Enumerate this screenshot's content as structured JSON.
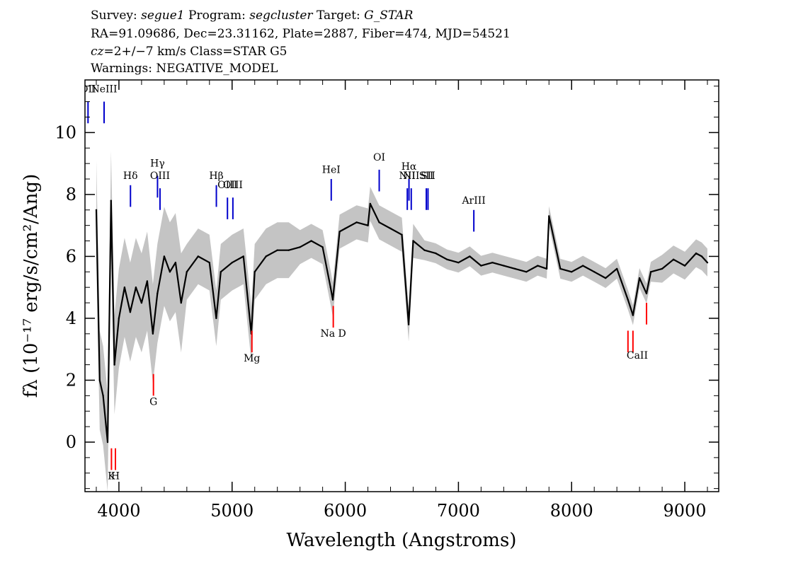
{
  "header": {
    "line1": {
      "survey_label": "Survey: ",
      "survey": "segue1",
      "program_label": " Program: ",
      "program": "segcluster",
      "target_label": " Target: ",
      "target": "G_STAR"
    },
    "line2": "RA=91.09686, Dec=23.31162, Plate=2887, Fiber=474, MJD=54521",
    "line3": {
      "cz_label": "cz",
      "cz_rest": "=2+/−7 km/s Class=STAR G5"
    },
    "line4": "Warnings: NEGATIVE_MODEL"
  },
  "chart_data": {
    "type": "line",
    "xlabel": "Wavelength (Angstroms)",
    "ylabel": "fλ (10⁻¹⁷ erg/s/cm²/Ang)",
    "xlim": [
      3700,
      9300
    ],
    "ylim": [
      -1.6,
      11.7
    ],
    "x_ticks": [
      4000,
      5000,
      6000,
      7000,
      8000,
      9000
    ],
    "y_ticks": [
      0,
      2,
      4,
      6,
      8,
      10
    ],
    "grid": false,
    "colors": {
      "flux": "#000000",
      "error_band": "#c4c4c4",
      "emission_lines": "#0000cc",
      "absorption_lines": "#ff0000"
    },
    "series": [
      {
        "x": [
          3800,
          3830,
          3860,
          3900,
          3930,
          3960,
          4000,
          4050,
          4100,
          4150,
          4200,
          4250,
          4300,
          4340,
          4400,
          4450,
          4500,
          4550,
          4600,
          4700,
          4800,
          4860,
          4900,
          5000,
          5100,
          5170,
          5200,
          5300,
          5400,
          5500,
          5600,
          5700,
          5800,
          5870,
          5890,
          5950,
          6000,
          6100,
          6200,
          6220,
          6300,
          6400,
          6500,
          6560,
          6600,
          6700,
          6800,
          6900,
          7000,
          7100,
          7200,
          7300,
          7400,
          7500,
          7600,
          7700,
          7780,
          7800,
          7900,
          8000,
          8100,
          8200,
          8300,
          8400,
          8498,
          8542,
          8600,
          8662,
          8700,
          8800,
          8900,
          9000,
          9100,
          9150,
          9200
        ],
        "values": [
          7.5,
          2.0,
          1.5,
          0.0,
          7.8,
          2.5,
          4.0,
          5.0,
          4.2,
          5.0,
          4.5,
          5.2,
          3.5,
          4.8,
          6.0,
          5.5,
          5.8,
          4.5,
          5.5,
          6.0,
          5.8,
          4.0,
          5.5,
          5.8,
          6.0,
          3.5,
          5.5,
          6.0,
          6.2,
          6.2,
          6.3,
          6.5,
          6.3,
          5.0,
          4.6,
          6.8,
          6.9,
          7.1,
          7.0,
          7.7,
          7.1,
          6.9,
          6.7,
          3.8,
          6.5,
          6.2,
          6.1,
          5.9,
          5.8,
          6.0,
          5.7,
          5.8,
          5.7,
          5.6,
          5.5,
          5.7,
          5.6,
          7.3,
          5.6,
          5.5,
          5.7,
          5.5,
          5.3,
          5.6,
          4.6,
          4.1,
          5.3,
          4.8,
          5.5,
          5.6,
          5.9,
          5.7,
          6.1,
          6.0,
          5.8
        ]
      }
    ],
    "emission_lines": [
      {
        "name": "OII",
        "x": 3727,
        "y0": 10.3,
        "y1": 11.0,
        "label_y": 11.3
      },
      {
        "name": "NeIII",
        "x": 3869,
        "y0": 10.3,
        "y1": 11.0,
        "label_y": 11.3
      },
      {
        "name": "Hδ",
        "x": 4102,
        "y0": 7.6,
        "y1": 8.3,
        "label_y": 8.5
      },
      {
        "name": "Hγ",
        "x": 4341,
        "y0": 7.9,
        "y1": 8.6,
        "label_y": 8.9
      },
      {
        "name": "OIII",
        "x": 4363,
        "y0": 7.5,
        "y1": 8.2,
        "label_y": 8.5
      },
      {
        "name": "Hβ",
        "x": 4861,
        "y0": 7.6,
        "y1": 8.3,
        "label_y": 8.5
      },
      {
        "name": "OIII",
        "x": 4959,
        "y0": 7.2,
        "y1": 7.9,
        "label_y": 8.2
      },
      {
        "name": "OIII",
        "x": 5007,
        "y0": 7.2,
        "y1": 7.9,
        "label_y": 8.2
      },
      {
        "name": "HeI",
        "x": 5876,
        "y0": 7.8,
        "y1": 8.5,
        "label_y": 8.7
      },
      {
        "name": "OI",
        "x": 6300,
        "y0": 8.1,
        "y1": 8.8,
        "label_y": 9.1
      },
      {
        "name": "NII",
        "x": 6548,
        "y0": 7.5,
        "y1": 8.2,
        "label_y": 8.5
      },
      {
        "name": "Hα",
        "x": 6563,
        "y0": 7.8,
        "y1": 8.5,
        "label_y": 8.8
      },
      {
        "name": "NII",
        "x": 6583,
        "y0": 7.5,
        "y1": 8.2,
        "label_y": 8.5
      },
      {
        "name": "SII",
        "x": 6716,
        "y0": 7.5,
        "y1": 8.2,
        "label_y": 8.5
      },
      {
        "name": "SII",
        "x": 6731,
        "y0": 7.5,
        "y1": 8.2,
        "label_y": 8.5
      },
      {
        "name": "ArIII",
        "x": 7136,
        "y0": 6.8,
        "y1": 7.5,
        "label_y": 7.7
      }
    ],
    "absorption_lines": [
      {
        "name": "K",
        "x": 3934,
        "y0": -0.9,
        "y1": -0.2
      },
      {
        "name": "H",
        "x": 3969,
        "y0": -0.9,
        "y1": -0.2
      },
      {
        "name": "G",
        "x": 4305,
        "y0": 1.5,
        "y1": 2.2
      },
      {
        "name": "Mg",
        "x": 5175,
        "y0": 2.9,
        "y1": 3.6
      },
      {
        "name": "Na",
        "x": 5894,
        "y0": 3.7,
        "y1": 4.4
      },
      {
        "name": "CaII",
        "x": 8498,
        "y0": 2.9,
        "y1": 3.6
      },
      {
        "name": "CaII",
        "x": 8542,
        "y0": 2.9,
        "y1": 3.6
      },
      {
        "name": "CaII",
        "x": 8662,
        "y0": 3.8,
        "y1": 4.5
      }
    ],
    "absorption_labels": [
      {
        "text": "K",
        "x": 3934,
        "y": -1.2
      },
      {
        "text": "H",
        "x": 3969,
        "y": -1.2
      },
      {
        "text": "G",
        "x": 4305,
        "y": 1.2
      },
      {
        "text": "Mg",
        "x": 5175,
        "y": 2.6
      },
      {
        "text": "Na D",
        "x": 5894,
        "y": 3.4
      },
      {
        "text": "CaII",
        "x": 8580,
        "y": 2.7
      }
    ]
  }
}
